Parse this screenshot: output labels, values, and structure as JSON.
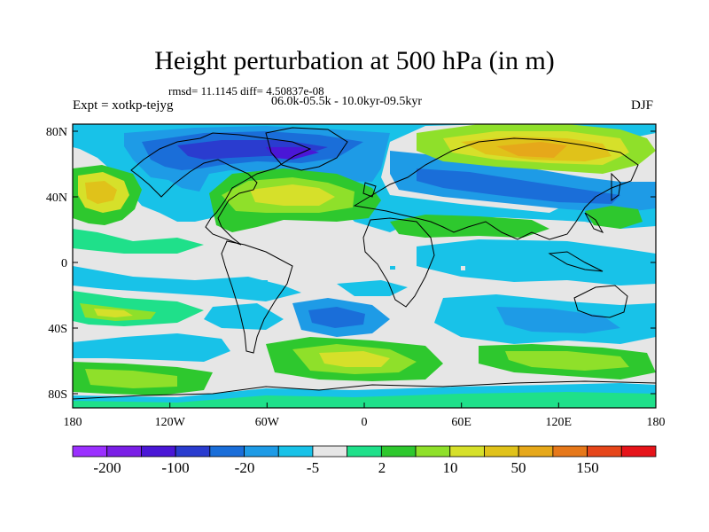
{
  "title": "Height perturbation at 500 hPa (in m)",
  "stats": "rmsd= 11.1145 diff= 4.50837e-08",
  "experiment": "Expt = xotkp-tejyg",
  "period": "06.0k-05.5k - 10.0kyr-09.5kyr",
  "season": "DJF",
  "lat_ticks": [
    "80N",
    "40N",
    "0",
    "40S",
    "80S"
  ],
  "lon_ticks": [
    "180",
    "120W",
    "60W",
    "0",
    "60E",
    "120E",
    "180"
  ],
  "colorbar": {
    "colors": [
      "#9b30ff",
      "#7a1fe6",
      "#4a17d6",
      "#2a3ccf",
      "#1a6ed9",
      "#1e9be6",
      "#18c2e8",
      "#e6e6e6",
      "#1fe08a",
      "#2ec82e",
      "#8fe02a",
      "#d6e02a",
      "#e0c21a",
      "#e6a81a",
      "#e6781a",
      "#e6461a",
      "#e6141a"
    ],
    "labels": [
      "-200",
      "-100",
      "-20",
      "-5",
      "2",
      "10",
      "50",
      "150"
    ]
  }
}
